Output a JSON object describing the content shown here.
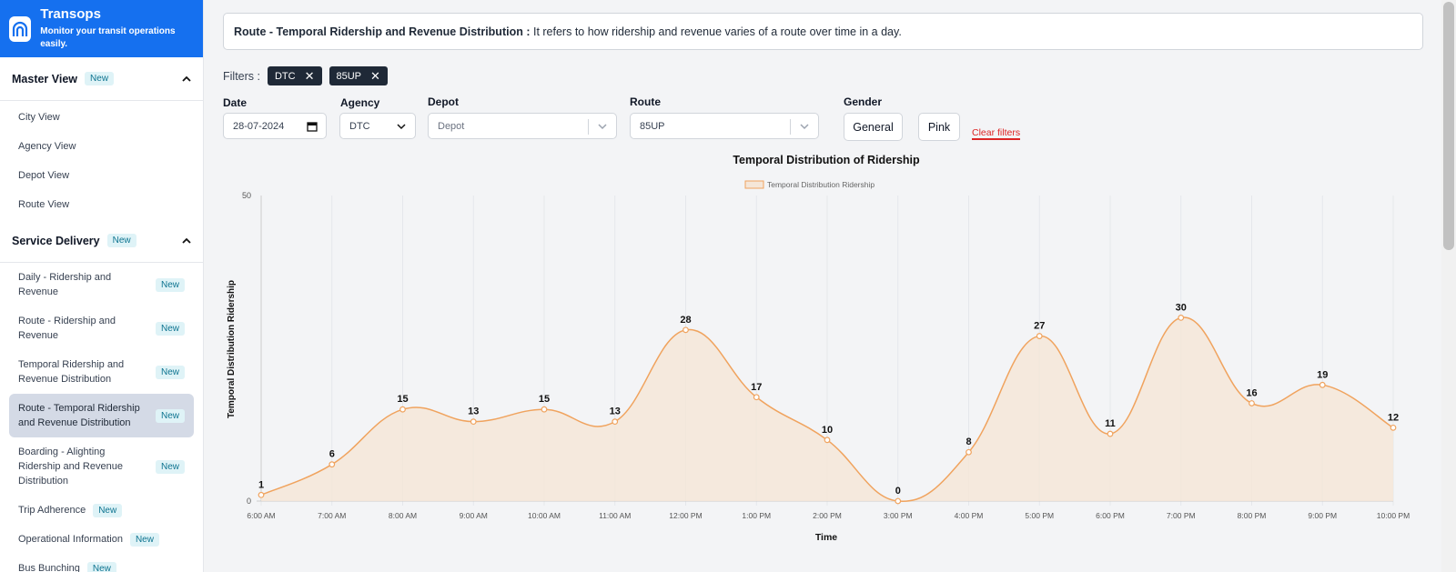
{
  "brand": {
    "title": "Transops",
    "subtitle": "Monitor your transit operations easily."
  },
  "sidebar": {
    "sections": [
      {
        "title": "Master View",
        "badge": "New",
        "items": [
          "City View",
          "Agency View",
          "Depot View",
          "Route View"
        ]
      },
      {
        "title": "Service Delivery",
        "badge": "New",
        "items": [
          {
            "label": "Daily - Ridership and Revenue",
            "badge": "New"
          },
          {
            "label": "Route - Ridership and Revenue",
            "badge": "New"
          },
          {
            "label": "Temporal Ridership and Revenue Distribution",
            "badge": "New"
          },
          {
            "label": "Route - Temporal Ridership and Revenue Distribution",
            "badge": "New",
            "active": true
          },
          {
            "label": "Boarding - Alighting Ridership and Revenue Distribution",
            "badge": "New"
          },
          {
            "label": "Trip Adherence",
            "badge": "New"
          },
          {
            "label": "Operational Information",
            "badge": "New"
          },
          {
            "label": "Bus Bunching",
            "badge": "New"
          }
        ]
      }
    ]
  },
  "description": {
    "title": "Route - Temporal Ridership and Revenue Distribution :",
    "text": " It refers to how ridership and revenue varies of a route over time in a day."
  },
  "filters": {
    "label": "Filters :",
    "chips": [
      "DTC",
      "85UP"
    ]
  },
  "form": {
    "date_label": "Date",
    "date_value": "28-07-2024",
    "agency_label": "Agency",
    "agency_value": "DTC",
    "depot_label": "Depot",
    "depot_placeholder": "Depot",
    "route_label": "Route",
    "route_value": "85UP",
    "gender_label": "Gender",
    "gender_general": "General",
    "gender_pink": "Pink",
    "clear_label": "Clear filters"
  },
  "colors": {
    "brand": "#1570ef",
    "line": "#f0a35e",
    "fill": "#f5e6d8",
    "danger": "#dc2626"
  },
  "chart_data": {
    "type": "area",
    "title": "Temporal Distribution of Ridership",
    "xlabel": "Time",
    "ylabel": "Temporal Distribution Ridership",
    "legend": "top",
    "ylim": [
      0,
      50
    ],
    "yticks": [
      0,
      50
    ],
    "categories": [
      "6:00 AM",
      "7:00 AM",
      "8:00 AM",
      "9:00 AM",
      "10:00 AM",
      "11:00 AM",
      "12:00 PM",
      "1:00 PM",
      "2:00 PM",
      "3:00 PM",
      "4:00 PM",
      "5:00 PM",
      "6:00 PM",
      "7:00 PM",
      "8:00 PM",
      "9:00 PM",
      "10:00 PM"
    ],
    "series": [
      {
        "name": "Temporal Distribution Ridership",
        "values": [
          1,
          6,
          15,
          13,
          15,
          13,
          28,
          17,
          10,
          0,
          8,
          27,
          11,
          30,
          16,
          19,
          12
        ]
      }
    ],
    "grid": "vertical"
  }
}
